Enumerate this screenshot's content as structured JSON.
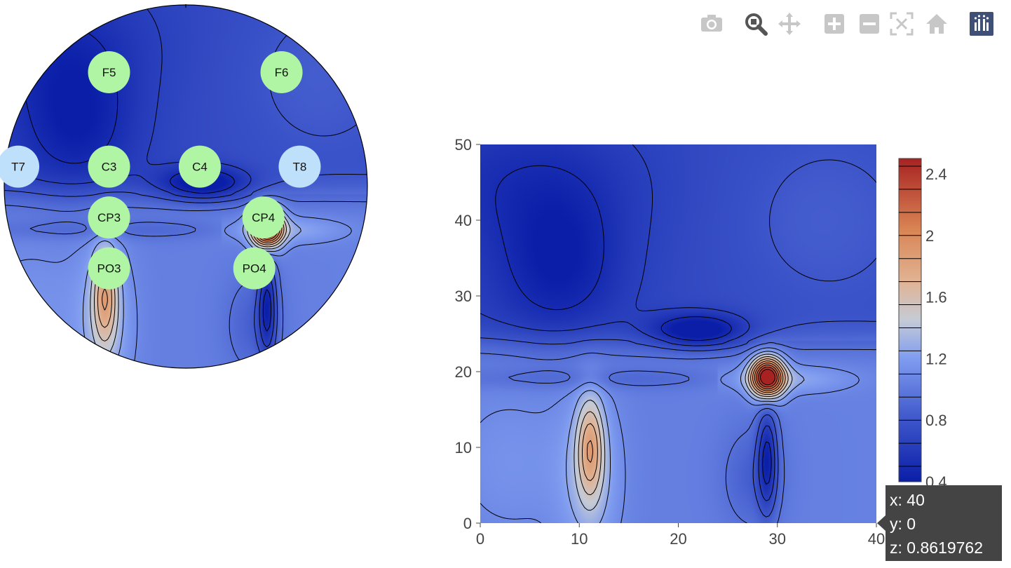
{
  "toolbar": {
    "buttons": [
      {
        "name": "camera-icon",
        "label": "Download plot as png"
      },
      {
        "name": "zoom-icon",
        "label": "Zoom"
      },
      {
        "name": "pan-icon",
        "label": "Pan"
      },
      {
        "name": "zoom-in-icon",
        "label": "Zoom in"
      },
      {
        "name": "zoom-out-icon",
        "label": "Zoom out"
      },
      {
        "name": "autoscale-icon",
        "label": "Autoscale"
      },
      {
        "name": "home-icon",
        "label": "Reset axes"
      },
      {
        "name": "plotly-logo-icon",
        "label": "Produced with Plotly"
      }
    ],
    "active": "zoom-icon"
  },
  "topomap": {
    "electrodes": [
      {
        "label": "F5",
        "color": "#b0f5a4",
        "x": 10,
        "y": 39
      },
      {
        "label": "F6",
        "color": "#b0f5a4",
        "x": 29,
        "y": 39
      },
      {
        "label": "T7",
        "color": "#bfe0fb",
        "x": 0,
        "y": 26
      },
      {
        "label": "C3",
        "color": "#b0f5a4",
        "x": 10,
        "y": 26
      },
      {
        "label": "C4",
        "color": "#b0f5a4",
        "x": 20,
        "y": 26
      },
      {
        "label": "T8",
        "color": "#bfe0fb",
        "x": 31,
        "y": 26
      },
      {
        "label": "CP3",
        "color": "#b0f5a4",
        "x": 10,
        "y": 19
      },
      {
        "label": "CP4",
        "color": "#b0f5a4",
        "x": 27,
        "y": 19
      },
      {
        "label": "PO3",
        "color": "#b0f5a4",
        "x": 10,
        "y": 12
      },
      {
        "label": "PO4",
        "color": "#b0f5a4",
        "x": 26,
        "y": 12
      }
    ]
  },
  "chart_data": {
    "type": "heatmap",
    "subtype": "contour",
    "x_range": [
      0,
      40
    ],
    "y_range": [
      0,
      50
    ],
    "x_ticks": [
      "0",
      "10",
      "20",
      "30",
      "40"
    ],
    "y_ticks": [
      "0",
      "10",
      "20",
      "30",
      "40",
      "50"
    ],
    "colorscale": "RdBu (reversed)",
    "colorbar": {
      "range": [
        0.4,
        2.5
      ],
      "ticks": [
        "0.4",
        "0.8",
        "1.2",
        "1.6",
        "2",
        "2.4"
      ]
    },
    "features": [
      {
        "kind": "peak",
        "x": 29,
        "y": 19,
        "z": 2.5
      },
      {
        "kind": "peak",
        "x": 11,
        "y": 11,
        "z": 1.55
      },
      {
        "kind": "trough",
        "x": 23,
        "y": 25,
        "z": 0.45
      },
      {
        "kind": "trough",
        "x": 29,
        "y": 8,
        "z": 0.45
      },
      {
        "kind": "trough",
        "x": 9,
        "y": 33,
        "z": 0.5
      }
    ],
    "grid": false,
    "legend": "colorbar-right"
  },
  "tooltip": {
    "x": "x: 40",
    "y": "y: 0",
    "z": "z: 0.8619762"
  }
}
